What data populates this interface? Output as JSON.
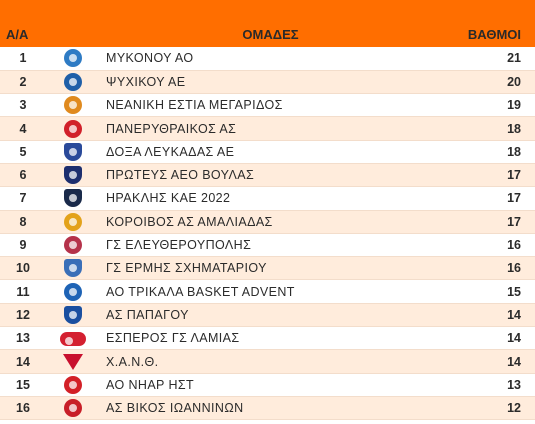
{
  "header": {
    "pos_label": "Α/Α",
    "team_label": "ΟΜΑΔΕΣ",
    "points_label": "ΒΑΘΜΟΙ"
  },
  "teams": [
    {
      "pos": "1",
      "name": "ΜΥΚΟΝΟΥ ΑΟ",
      "points": "21",
      "logo_icon": "mykonos-logo-icon",
      "logo_color": "#2e7bc4",
      "logo_shape": "round"
    },
    {
      "pos": "2",
      "name": "ΨΥΧΙΚΟΥ ΑΕ",
      "points": "20",
      "logo_icon": "psychiko-logo-icon",
      "logo_color": "#1f5fa8",
      "logo_shape": "round"
    },
    {
      "pos": "3",
      "name": "ΝΕΑΝΙΚΗ ΕΣΤΙΑ ΜΕΓΑΡΙΔΟΣ",
      "points": "19",
      "logo_icon": "megaridos-logo-icon",
      "logo_color": "#e08a1e",
      "logo_shape": "round"
    },
    {
      "pos": "4",
      "name": "ΠΑΝΕΡΥΘΡΑΙΚΟΣ ΑΣ",
      "points": "18",
      "logo_icon": "panerythraikos-logo-icon",
      "logo_color": "#d1202a",
      "logo_shape": "round"
    },
    {
      "pos": "5",
      "name": "ΔΟΞΑ ΛΕΥΚΑΔΑΣ ΑΕ",
      "points": "18",
      "logo_icon": "doxa-lefkadas-logo-icon",
      "logo_color": "#2a4a9a",
      "logo_shape": "shield"
    },
    {
      "pos": "6",
      "name": "ΠΡΩΤΕΥΣ ΑΕΟ ΒΟΥΛΑΣ",
      "points": "17",
      "logo_icon": "proteus-logo-icon",
      "logo_color": "#1d2e6e",
      "logo_shape": "shield"
    },
    {
      "pos": "7",
      "name": "ΗΡΑΚΛΗΣ ΚΑΕ 2022",
      "points": "17",
      "logo_icon": "iraklis-logo-icon",
      "logo_color": "#1a2a4a",
      "logo_shape": "shield"
    },
    {
      "pos": "8",
      "name": "ΚΟΡΟΙΒΟΣ ΑΣ ΑΜΑΛΙΑΔΑΣ",
      "points": "17",
      "logo_icon": "koroivos-logo-icon",
      "logo_color": "#e3a21a",
      "logo_shape": "round"
    },
    {
      "pos": "9",
      "name": "ΓΣ ΕΛΕΥΘΕΡΟΥΠΟΛΗΣ",
      "points": "16",
      "logo_icon": "eleftheroupolis-logo-icon",
      "logo_color": "#b5324a",
      "logo_shape": "round"
    },
    {
      "pos": "10",
      "name": "ΓΣ ΕΡΜΗΣ ΣΧΗΜΑΤΑΡΙΟΥ",
      "points": "16",
      "logo_icon": "ermis-logo-icon",
      "logo_color": "#3a6fb8",
      "logo_shape": "shield"
    },
    {
      "pos": "11",
      "name": "ΑΟ ΤΡΙΚΑΛΑ BASKET ADVENT",
      "points": "15",
      "logo_icon": "trikala-logo-icon",
      "logo_color": "#1e63b5",
      "logo_shape": "round"
    },
    {
      "pos": "12",
      "name": "ΑΣ ΠΑΠΑΓΟΥ",
      "points": "14",
      "logo_icon": "papagou-logo-icon",
      "logo_color": "#1a4fa0",
      "logo_shape": "shield"
    },
    {
      "pos": "13",
      "name": "ΕΣΠΕΡΟΣ ΓΣ ΛΑΜΙΑΣ",
      "points": "14",
      "logo_icon": "esperos-logo-icon",
      "logo_color": "#d42030",
      "logo_shape": "wide"
    },
    {
      "pos": "14",
      "name": "Χ.Α.Ν.Θ.",
      "points": "14",
      "logo_icon": "xanth-logo-icon",
      "logo_color": "#c8102e",
      "logo_shape": "tri"
    },
    {
      "pos": "15",
      "name": "ΑΟ ΝΗΑΡ ΗΣΤ",
      "points": "13",
      "logo_icon": "niar-logo-icon",
      "logo_color": "#d32027",
      "logo_shape": "round"
    },
    {
      "pos": "16",
      "name": "ΑΣ ΒΙΚΟΣ ΙΩΑΝΝΙΝΩΝ",
      "points": "12",
      "logo_icon": "vikos-logo-icon",
      "logo_color": "#c81e28",
      "logo_shape": "round"
    }
  ]
}
